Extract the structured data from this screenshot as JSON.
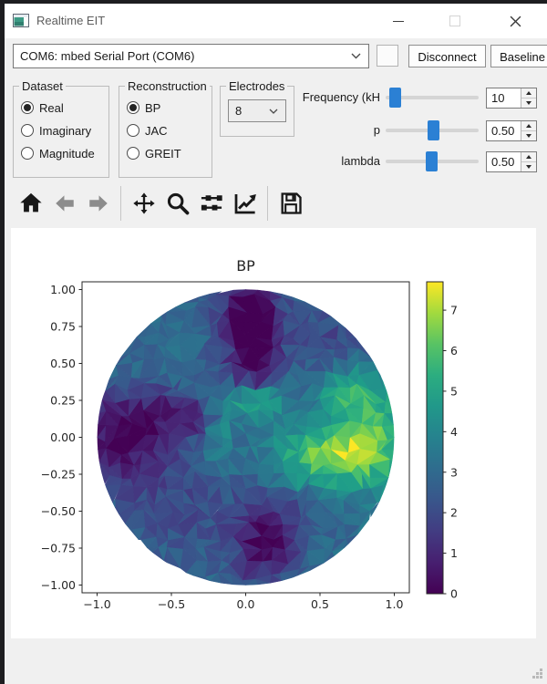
{
  "titlebar": {
    "title": "Realtime EIT"
  },
  "connection": {
    "port": "COM6: mbed Serial Port (COM6)",
    "disconnect": "Disconnect",
    "baseline": "Baseline"
  },
  "groups": {
    "dataset": {
      "label": "Dataset",
      "options": [
        {
          "label": "Real",
          "selected": true
        },
        {
          "label": "Imaginary",
          "selected": false
        },
        {
          "label": "Magnitude",
          "selected": false
        }
      ]
    },
    "reconstruction": {
      "label": "Reconstruction",
      "options": [
        {
          "label": "BP",
          "selected": true
        },
        {
          "label": "JAC",
          "selected": false
        },
        {
          "label": "GREIT",
          "selected": false
        }
      ]
    },
    "electrodes": {
      "label": "Electrodes",
      "value": "8"
    }
  },
  "sliders": [
    {
      "label": "Frequency (kH",
      "value": "10",
      "fraction": 0.04
    },
    {
      "label": "p",
      "value": "0.50",
      "fraction": 0.52
    },
    {
      "label": "lambda",
      "value": "0.50",
      "fraction": 0.49
    }
  ],
  "toolbar": {
    "icons": [
      "home",
      "back",
      "forward",
      "pan",
      "zoom-to-rect",
      "configure-subplots",
      "edit-parameters",
      "save"
    ]
  },
  "chart_data": {
    "type": "heatmap",
    "subtype": "EIT tripcolor reconstruction on unit circle",
    "title": "BP",
    "xlim": [
      -1.1,
      1.1
    ],
    "ylim": [
      -1.05,
      1.05
    ],
    "xticks": [
      -1.0,
      -0.5,
      0.0,
      0.5,
      1.0
    ],
    "yticks": [
      1.0,
      0.75,
      0.5,
      0.25,
      0.0,
      -0.25,
      -0.5,
      -0.75,
      -1.0
    ],
    "colorbar": {
      "min": 0,
      "max": 7.7,
      "ticks": [
        0,
        1,
        2,
        3,
        4,
        5,
        6,
        7
      ],
      "colormap": "viridis",
      "position": "right"
    },
    "base_value": 3.0,
    "features": [
      {
        "x": -0.82,
        "y": 0.02,
        "sx": 0.22,
        "sy": 0.2,
        "amp": -2.9,
        "desc": "dark region left edge ~0"
      },
      {
        "x": -0.55,
        "y": 0.18,
        "sx": 0.16,
        "sy": 0.12,
        "amp": -1.2,
        "desc": "dark shading left"
      },
      {
        "x": -0.35,
        "y": 0.15,
        "sx": 0.09,
        "sy": 0.09,
        "amp": -1.6,
        "desc": "small dark spot"
      },
      {
        "x": 0.03,
        "y": 0.8,
        "sx": 0.15,
        "sy": 0.26,
        "amp": -3.2,
        "desc": "dark wedge top center ~0"
      },
      {
        "x": 0.06,
        "y": 0.45,
        "sx": 0.1,
        "sy": 0.2,
        "amp": -1.7,
        "desc": "wedge tail"
      },
      {
        "x": 0.06,
        "y": 0.25,
        "sx": 0.13,
        "sy": 0.09,
        "amp": 3.4,
        "desc": "bright blob center ~6.5"
      },
      {
        "x": -0.17,
        "y": -0.02,
        "sx": 0.07,
        "sy": 0.16,
        "amp": 1.3,
        "desc": "green streak left of center"
      },
      {
        "x": 0.55,
        "y": -0.13,
        "sx": 0.26,
        "sy": 0.15,
        "amp": 3.3,
        "desc": "bright region right ~7"
      },
      {
        "x": 0.85,
        "y": 0.08,
        "sx": 0.18,
        "sy": 0.28,
        "amp": 2.6,
        "desc": "bright band right edge"
      },
      {
        "x": 0.66,
        "y": 0.33,
        "sx": 0.12,
        "sy": 0.1,
        "amp": 1.8,
        "desc": "bright peak upper right"
      },
      {
        "x": 0.14,
        "y": -0.72,
        "sx": 0.15,
        "sy": 0.17,
        "amp": -2.9,
        "desc": "dark blob bottom ~0"
      },
      {
        "x": -0.45,
        "y": -0.45,
        "sx": 0.34,
        "sy": 0.27,
        "amp": -1.0,
        "desc": "dim lower left ~2"
      },
      {
        "x": 0.62,
        "y": 0.68,
        "sx": 0.27,
        "sy": 0.18,
        "amp": -1.1,
        "desc": "dim upper right ~2"
      },
      {
        "x": 0.25,
        "y": -0.45,
        "sx": 0.18,
        "sy": 0.12,
        "amp": -0.8,
        "desc": "dim patch below center"
      }
    ],
    "mesh": {
      "grid_n": 24,
      "seed": 7,
      "jitter": 0.72,
      "noise": 0.55
    }
  }
}
